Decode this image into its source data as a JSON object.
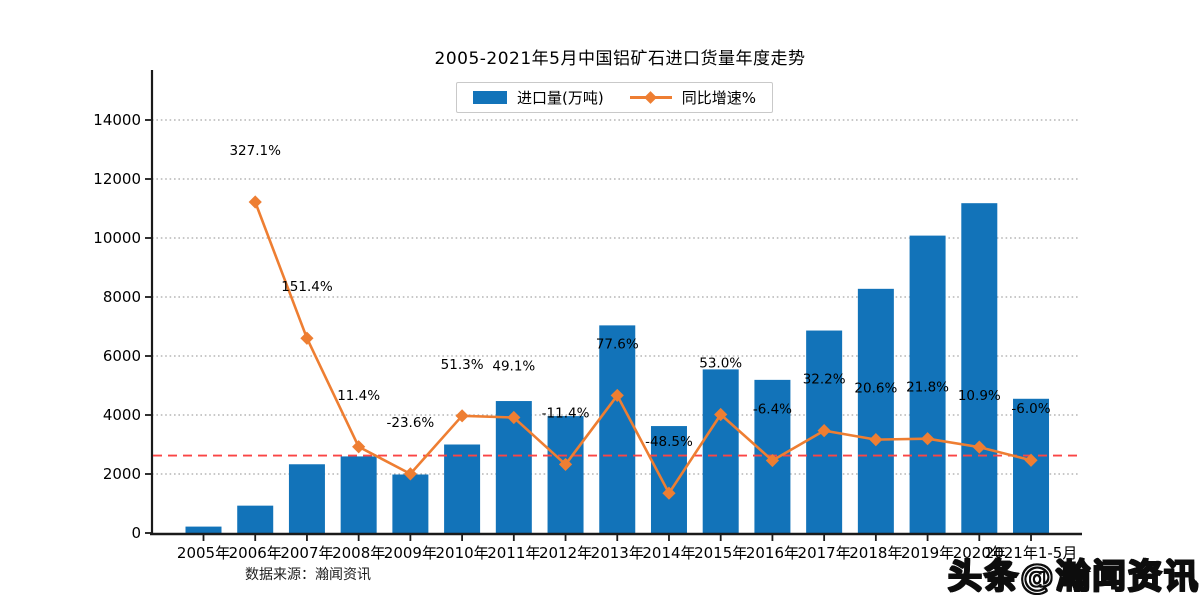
{
  "colors": {
    "bar": "#1273b9",
    "line": "#ee7e32",
    "zero_line": "#fa4545",
    "grid": "#a8a8a8",
    "axis": "#1a1a1a",
    "text": "#000000"
  },
  "footer": {
    "source_note": "数据来源：瀚闻资讯",
    "watermark": "头条@瀚闻资讯"
  },
  "chart_data": {
    "type": "bar+line",
    "title": "2005-2021年5月中国铝矿石进口货量年度走势",
    "legend_position": "top-center",
    "grid": "dotted horizontal",
    "categories": [
      "2005年",
      "2006年",
      "2007年",
      "2008年",
      "2009年",
      "2010年",
      "2011年",
      "2012年",
      "2013年",
      "2014年",
      "2015年",
      "2016年",
      "2017年",
      "2018年",
      "2019年",
      "2020年",
      "2021年1-5月"
    ],
    "series": [
      {
        "name": "进口量(万吨)",
        "type": "bar",
        "values": [
          217,
          927,
          2330,
          2596,
          1983,
          3000,
          4473,
          3963,
          7038,
          3625,
          5546,
          5191,
          6863,
          8277,
          10081,
          11180,
          4550
        ]
      },
      {
        "name": "同比增速%",
        "type": "line",
        "start_index": 1,
        "values": [
          327.1,
          151.4,
          11.4,
          -23.6,
          51.3,
          49.1,
          -11.4,
          77.6,
          -48.5,
          53.0,
          -6.4,
          32.2,
          20.6,
          21.8,
          10.9,
          -6.0
        ],
        "labels": [
          "327.1%",
          "151.4%",
          "11.4%",
          "-23.6%",
          "51.3%",
          "49.1%",
          "-11.4%",
          "77.6%",
          "-48.5%",
          "53.0%",
          "-6.4%",
          "32.2%",
          "20.6%",
          "21.8%",
          "10.9%",
          "-6.0%"
        ]
      }
    ],
    "y_axis": {
      "min": 0,
      "max": 15600,
      "tick_step": 2000,
      "ticks": [
        "0",
        "2000",
        "4000",
        "6000",
        "8000",
        "10000",
        "12000",
        "14000"
      ]
    },
    "secondary_line_mapping": {
      "note": "growth % drawn against left axis units",
      "units_per_percent": 26.28,
      "zero_percent_at_units": 2624
    },
    "zero_growth_reference_line": true
  }
}
